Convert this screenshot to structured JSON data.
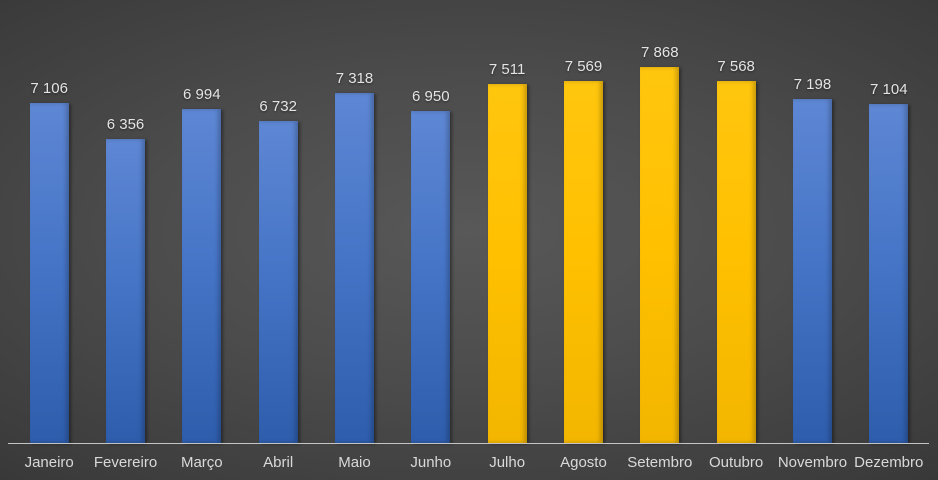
{
  "chart_data": {
    "type": "bar",
    "title": "",
    "xlabel": "",
    "ylabel": "",
    "categories": [
      "Janeiro",
      "Fevereiro",
      "Março",
      "Abril",
      "Maio",
      "Junho",
      "Julho",
      "Agosto",
      "Setembro",
      "Outubro",
      "Novembro",
      "Dezembro"
    ],
    "values": [
      7106,
      6356,
      6994,
      6732,
      7318,
      6950,
      7511,
      7569,
      7868,
      7568,
      7198,
      7104
    ],
    "display_values": [
      "7 106",
      "6 356",
      "6 994",
      "6 732",
      "7 318",
      "6 950",
      "7 511",
      "7 569",
      "7 868",
      "7 568",
      "7 198",
      "7 104"
    ],
    "bar_colors": [
      "blue",
      "blue",
      "blue",
      "blue",
      "blue",
      "blue",
      "yellow",
      "yellow",
      "yellow",
      "yellow",
      "blue",
      "blue"
    ],
    "series_colors": {
      "blue": {
        "top": "#5E87D4",
        "mid": "#4574C6",
        "bottom": "#2E5DAC"
      },
      "yellow": {
        "top": "#FFC60F",
        "mid": "#FFC000",
        "bottom": "#F3B600"
      }
    },
    "data_label_color": "#E4E4E4",
    "axis_label_color": "#D9D9D9",
    "axis_line_color": "#CFCFCF",
    "background_center_color": "#585858",
    "background_edge_color": "#242424",
    "ylim": [
      0,
      8000
    ],
    "grid": false,
    "legend": false,
    "data_labels_position": "above-bar"
  }
}
